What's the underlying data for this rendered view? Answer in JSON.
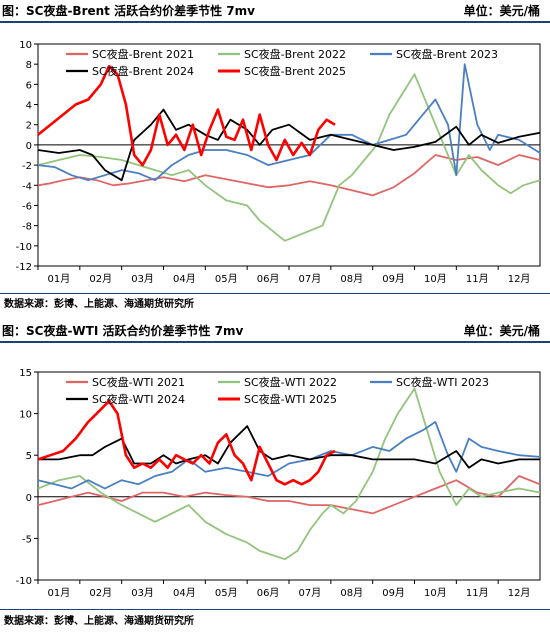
{
  "chart_data": [
    {
      "type": "line",
      "title": "图：SC夜盘-Brent 活跃合约价差季节性 7mv",
      "unit": "单位：美元/桶",
      "source": "数据来源：彭博、上能源、海通期货研究所",
      "categories": [
        "01月",
        "02月",
        "03月",
        "04月",
        "05月",
        "06月",
        "07月",
        "08月",
        "09月",
        "10月",
        "11月",
        "12月"
      ],
      "ylim": [
        -12,
        10
      ],
      "yticks": [
        10,
        8,
        6,
        4,
        2,
        0,
        -2,
        -4,
        -6,
        -8,
        -10,
        -12
      ],
      "series": [
        {
          "name": "SC夜盘-Brent 2021",
          "color": "#e06666",
          "x": [
            0,
            0.3,
            0.6,
            1,
            1.4,
            1.8,
            2.2,
            2.6,
            3,
            3.5,
            4,
            4.5,
            5,
            5.5,
            6,
            6.5,
            7,
            7.5,
            8,
            8.5,
            9,
            9.5,
            10,
            10.5,
            11,
            11.5,
            12
          ],
          "values": [
            -4,
            -3.8,
            -3.5,
            -3.2,
            -3.5,
            -4,
            -3.8,
            -3.5,
            -3.2,
            -3.6,
            -3,
            -3.4,
            -3.8,
            -4.2,
            -4,
            -3.6,
            -4,
            -4.5,
            -5,
            -4.2,
            -2.8,
            -1,
            -1.5,
            -1.2,
            -2,
            -1,
            -1.5
          ]
        },
        {
          "name": "SC夜盘-Brent 2022",
          "color": "#93c47d",
          "x": [
            0,
            0.5,
            1,
            1.5,
            2,
            2.4,
            2.8,
            3.2,
            3.6,
            4,
            4.5,
            5,
            5.3,
            5.6,
            5.9,
            6.2,
            6.5,
            6.8,
            7,
            7.2,
            7.5,
            7.8,
            8.1,
            8.4,
            8.7,
            9,
            9.3,
            9.6,
            10,
            10.3,
            10.6,
            11,
            11.3,
            11.6,
            12
          ],
          "values": [
            -2,
            -1.5,
            -1,
            -1.2,
            -1.5,
            -2,
            -2.5,
            -3,
            -2.5,
            -4,
            -5.5,
            -6,
            -7.5,
            -8.5,
            -9.5,
            -9,
            -8.5,
            -8,
            -6,
            -4,
            -3,
            -1.5,
            0,
            3,
            5,
            7,
            4,
            1,
            -3,
            -1,
            -2.5,
            -4,
            -4.8,
            -4,
            -3.5
          ]
        },
        {
          "name": "SC夜盘-Brent 2023",
          "color": "#4a7fc1",
          "x": [
            0,
            0.4,
            0.8,
            1.2,
            1.6,
            2,
            2.4,
            2.8,
            3.2,
            3.6,
            4,
            4.5,
            5,
            5.5,
            6,
            6.5,
            7,
            7.5,
            8,
            8.4,
            8.8,
            9.2,
            9.5,
            9.8,
            10,
            10.2,
            10.5,
            10.8,
            11,
            11.5,
            12
          ],
          "values": [
            -2,
            -2.2,
            -3,
            -3.5,
            -3,
            -2.5,
            -2.8,
            -3.5,
            -2,
            -1,
            -0.5,
            -0.5,
            -1,
            -2,
            -1.5,
            -1,
            1,
            1,
            0,
            0.5,
            1,
            3,
            4.5,
            2,
            -3,
            8,
            2,
            -0.5,
            1,
            0.5,
            -0.8
          ]
        },
        {
          "name": "SC夜盘-Brent 2024",
          "color": "#000000",
          "x": [
            0,
            0.5,
            1,
            1.3,
            1.6,
            2,
            2.3,
            2.7,
            3,
            3.3,
            3.6,
            4,
            4.3,
            4.6,
            5,
            5.3,
            5.6,
            6,
            6.5,
            7,
            7.5,
            8,
            8.5,
            9,
            9.5,
            10,
            10.3,
            10.6,
            11,
            11.5,
            12
          ],
          "values": [
            -0.5,
            -0.8,
            -0.5,
            -1,
            -2.5,
            -3.5,
            0.5,
            2,
            3.5,
            1.5,
            2,
            1,
            0.5,
            2.5,
            1.5,
            0,
            1.5,
            2,
            0.5,
            1,
            0.5,
            0,
            -0.5,
            -0.2,
            0.3,
            1.8,
            0,
            1,
            0.2,
            0.8,
            1.2
          ]
        },
        {
          "name": "SC夜盘-Brent 2025",
          "color": "#ff0000",
          "x": [
            0,
            0.3,
            0.6,
            0.9,
            1.2,
            1.5,
            1.7,
            1.9,
            2.1,
            2.3,
            2.5,
            2.7,
            2.9,
            3.1,
            3.3,
            3.5,
            3.7,
            3.9,
            4.1,
            4.3,
            4.5,
            4.7,
            4.9,
            5.1,
            5.3,
            5.5,
            5.7,
            5.9,
            6.1,
            6.3,
            6.5,
            6.7,
            6.9,
            7.1
          ],
          "values": [
            1,
            2,
            3,
            4,
            4.5,
            6,
            7.8,
            7,
            4,
            -1,
            -2,
            -0.5,
            3,
            0,
            1,
            -0.5,
            2,
            -1,
            1.5,
            3.5,
            0.8,
            0.5,
            2.5,
            -0.5,
            3,
            0,
            -1.5,
            0.5,
            -1,
            0.2,
            -1,
            1.5,
            2.5,
            2
          ]
        }
      ]
    },
    {
      "type": "line",
      "title": "图：SC夜盘-WTI 活跃合约价差季节性 7mv",
      "unit": "单位：美元/桶",
      "source": "数据来源：彭博、上能源、海通期货研究所",
      "categories": [
        "01月",
        "02月",
        "03月",
        "04月",
        "05月",
        "06月",
        "07月",
        "08月",
        "09月",
        "10月",
        "11月",
        "12月"
      ],
      "ylim": [
        -10,
        15
      ],
      "yticks": [
        15,
        10,
        5,
        0,
        -5,
        -10
      ],
      "series": [
        {
          "name": "SC夜盘-WTI 2021",
          "color": "#e06666",
          "x": [
            0,
            0.4,
            0.8,
            1.2,
            1.6,
            2,
            2.5,
            3,
            3.5,
            4,
            4.5,
            5,
            5.5,
            6,
            6.5,
            7,
            7.5,
            8,
            8.5,
            9,
            9.5,
            10,
            10.5,
            11,
            11.5,
            12
          ],
          "values": [
            -1,
            -0.5,
            0,
            0.5,
            0,
            -0.5,
            0.5,
            0.5,
            0,
            0.5,
            0.2,
            0,
            -0.5,
            -0.5,
            -1,
            -1,
            -1.5,
            -2,
            -1,
            0,
            1,
            2,
            0.5,
            0,
            2.5,
            1.5
          ]
        },
        {
          "name": "SC夜盘-WTI 2022",
          "color": "#93c47d",
          "x": [
            0,
            0.5,
            1,
            1.5,
            2,
            2.4,
            2.8,
            3.2,
            3.6,
            4,
            4.5,
            5,
            5.3,
            5.6,
            5.9,
            6.2,
            6.5,
            6.8,
            7,
            7.3,
            7.6,
            8,
            8.3,
            8.6,
            9,
            9.3,
            9.6,
            10,
            10.3,
            10.6,
            11,
            11.5,
            12
          ],
          "values": [
            1,
            2,
            2.5,
            0.5,
            -1,
            -2,
            -3,
            -2,
            -1,
            -3,
            -4.5,
            -5.5,
            -6.5,
            -7,
            -7.5,
            -6.5,
            -4,
            -2,
            -1,
            -2,
            -0.5,
            3,
            7,
            10,
            13,
            8,
            3,
            -1,
            1,
            0,
            0.5,
            1,
            0.5
          ]
        },
        {
          "name": "SC夜盘-WTI 2023",
          "color": "#4a7fc1",
          "x": [
            0,
            0.4,
            0.8,
            1.2,
            1.6,
            2,
            2.4,
            2.8,
            3.2,
            3.6,
            4,
            4.5,
            5,
            5.5,
            6,
            6.5,
            7,
            7.5,
            8,
            8.4,
            8.8,
            9.2,
            9.5,
            9.8,
            10,
            10.3,
            10.6,
            11,
            11.5,
            12
          ],
          "values": [
            2,
            1.5,
            1,
            2,
            1,
            2,
            1.5,
            2.5,
            3,
            4.5,
            3,
            3.5,
            3,
            2.5,
            4,
            4.5,
            5.5,
            5,
            6,
            5.5,
            7,
            8,
            9,
            5,
            3,
            7,
            6,
            5.5,
            5,
            4.8
          ]
        },
        {
          "name": "SC夜盘-WTI 2024",
          "color": "#000000",
          "x": [
            0,
            0.5,
            1,
            1.3,
            1.6,
            2,
            2.3,
            2.7,
            3,
            3.3,
            3.6,
            4,
            4.3,
            4.6,
            5,
            5.3,
            5.6,
            6,
            6.5,
            7,
            7.5,
            8,
            8.5,
            9,
            9.5,
            10,
            10.3,
            10.6,
            11,
            11.5,
            12
          ],
          "values": [
            4.5,
            4.5,
            5,
            5,
            6,
            7,
            4,
            4,
            5,
            4,
            4.5,
            5,
            4,
            6.5,
            8.5,
            5.5,
            4.5,
            5,
            4.5,
            5,
            5,
            4.5,
            4.5,
            4.5,
            4,
            5.5,
            3.5,
            4.5,
            4,
            4.5,
            4.5
          ]
        },
        {
          "name": "SC夜盘-WTI 2025",
          "color": "#ff0000",
          "x": [
            0,
            0.3,
            0.6,
            0.9,
            1.2,
            1.5,
            1.7,
            1.9,
            2.1,
            2.3,
            2.5,
            2.7,
            2.9,
            3.1,
            3.3,
            3.5,
            3.7,
            3.9,
            4.1,
            4.3,
            4.5,
            4.7,
            4.9,
            5.1,
            5.3,
            5.5,
            5.7,
            5.9,
            6.1,
            6.3,
            6.5,
            6.7,
            6.9,
            7.1
          ],
          "values": [
            4.5,
            5,
            5.5,
            7,
            9,
            10.5,
            11.5,
            10,
            5,
            3.5,
            4,
            3.5,
            4.5,
            3.5,
            5,
            4.5,
            4,
            5,
            4,
            6.5,
            7.5,
            5,
            4,
            2,
            6,
            4,
            2,
            1.5,
            2,
            1.5,
            2,
            3,
            5,
            5.5
          ]
        }
      ]
    }
  ]
}
